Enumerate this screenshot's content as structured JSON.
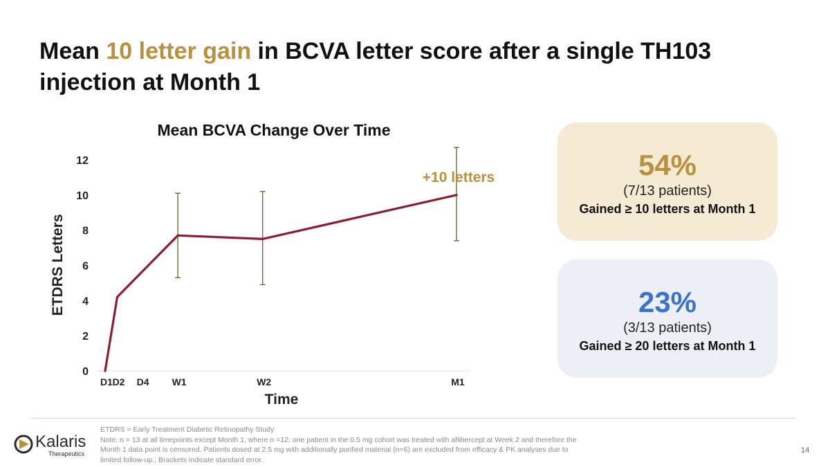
{
  "title": {
    "part1": "Mean ",
    "highlight": "10 letter gain",
    "part2": " in BCVA letter score after a single TH103 injection at Month 1"
  },
  "chart_data": {
    "type": "line",
    "title": "Mean BCVA Change Over Time",
    "xlabel": "Time",
    "ylabel": "ETDRS Letters",
    "ylim": [
      0,
      12
    ],
    "yticks": [
      0,
      2,
      4,
      6,
      8,
      10,
      12
    ],
    "x_days": [
      1,
      2,
      4,
      7,
      14,
      30
    ],
    "x_labels": [
      "D1",
      "D2",
      "D4",
      "W1",
      "W2",
      "M1"
    ],
    "series": [
      {
        "values": [
          0,
          4.2,
          5.6,
          7.7,
          7.5,
          10.0
        ],
        "error_low": [
          null,
          null,
          null,
          5.3,
          4.9,
          7.4
        ],
        "error_high": [
          null,
          null,
          null,
          10.1,
          10.2,
          12.7
        ]
      }
    ],
    "annotation": "+10 letters",
    "colors": {
      "line": "#8E1B2F",
      "error_bars": "#6B5A2E",
      "annotation": "#B8913E"
    }
  },
  "cards": [
    {
      "percent": "54%",
      "patients": "(7/13 patients)",
      "description": "Gained ≥ 10 letters at Month 1"
    },
    {
      "percent": "23%",
      "patients": "(3/13 patients)",
      "description": "Gained ≥ 20 letters at Month 1"
    }
  ],
  "footnote": [
    "ETDRS = Early Treatment Diabetic Retinopathy Study",
    "Note: n = 13 at all timepoints except Month 1, where n =12; one patient in the 0.5 mg cohort was treated with aflibercept at Week 2 and therefore the",
    "Month 1 data point is censored. Patients dosed at 2.5 mg with additionally purified material (n=6) are excluded from efficacy & PK analyses due to",
    "limited follow-up.; Brackets indicate standard error."
  ],
  "logo": {
    "name": "Kalaris",
    "tagline": "Therapeutics"
  },
  "page_number": "14",
  "colors": {
    "gold": "#B8913E",
    "blue": "#3A74C8",
    "card_gold_bg": "#F5EAD3",
    "card_blue_bg": "#ECEFF6"
  }
}
